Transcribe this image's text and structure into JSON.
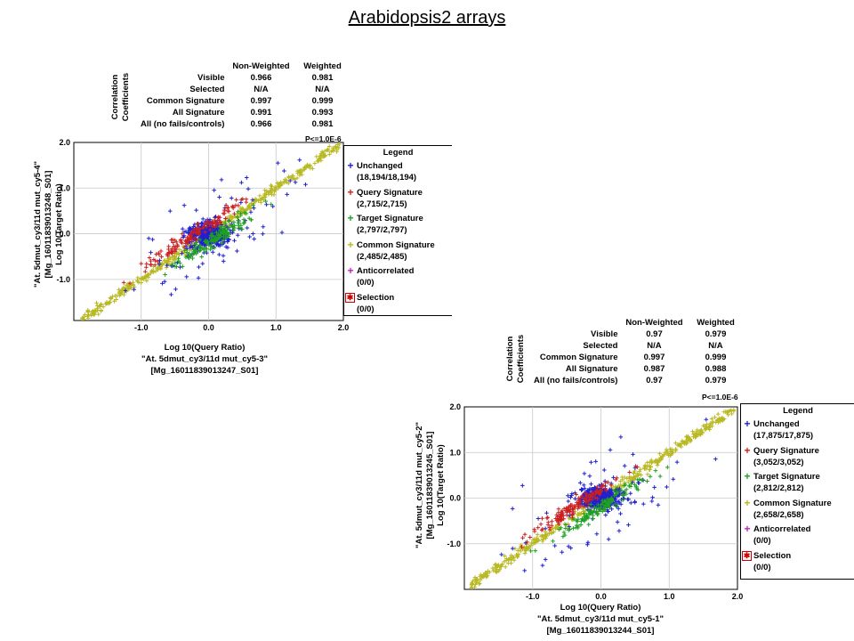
{
  "page": {
    "title": "Arabidopsis2 arrays"
  },
  "colors": {
    "unchanged": "#2020d0",
    "query": "#cc2020",
    "target": "#20a020",
    "common": "#b8b820",
    "anticorrelated": "#c020c0",
    "selection": "#cc0000"
  },
  "panels": [
    {
      "table": {
        "side_label_1": "Correlation",
        "side_label_2": "Coefficients",
        "headers": [
          "Non-Weighted",
          "Weighted"
        ],
        "rows": [
          {
            "name": "Visible",
            "nw": "0.966",
            "w": "0.981"
          },
          {
            "name": "Selected",
            "nw": "N/A",
            "w": "N/A"
          },
          {
            "name": "Common Signature",
            "nw": "0.997",
            "w": "0.999"
          },
          {
            "name": "All Signature",
            "nw": "0.991",
            "w": "0.993"
          },
          {
            "name": "All (no fails/controls)",
            "nw": "0.966",
            "w": "0.981"
          }
        ],
        "pvalue": "P<=1.0E-6"
      },
      "xlabel": [
        "Log 10(Query Ratio)",
        "\"At. 5dmut_cy3/11d mut_cy5-3\"",
        "[Mg_16011839013247_S01]"
      ],
      "ylabel": [
        "\"At. 5dmut_cy3/11d mut_cy5-4\"",
        "[Mg_16011839013248_S01]",
        "Log 10(Target Ratio)"
      ],
      "legend": {
        "title": "Legend",
        "items": [
          {
            "name": "Unchanged",
            "count": "(18,194/18,194)"
          },
          {
            "name": "Query Signature",
            "count": "(2,715/2,715)"
          },
          {
            "name": "Target Signature",
            "count": "(2,797/2,797)"
          },
          {
            "name": "Common Signature",
            "count": "(2,485/2,485)"
          },
          {
            "name": "Anticorrelated",
            "count": "(0/0)"
          },
          {
            "name": "Selection",
            "count": "(0/0)"
          }
        ]
      }
    },
    {
      "table": {
        "side_label_1": "Correlation",
        "side_label_2": "Coefficients",
        "headers": [
          "Non-Weighted",
          "Weighted"
        ],
        "rows": [
          {
            "name": "Visible",
            "nw": "0.97",
            "w": "0.979"
          },
          {
            "name": "Selected",
            "nw": "N/A",
            "w": "N/A"
          },
          {
            "name": "Common Signature",
            "nw": "0.997",
            "w": "0.999"
          },
          {
            "name": "All Signature",
            "nw": "0.987",
            "w": "0.988"
          },
          {
            "name": "All (no fails/controls)",
            "nw": "0.97",
            "w": "0.979"
          }
        ],
        "pvalue": "P<=1.0E-6"
      },
      "xlabel": [
        "Log 10(Query Ratio)",
        "\"At. 5dmut_cy3/11d mut_cy5-1\"",
        "[Mg_16011839013244_S01]"
      ],
      "ylabel": [
        "\"At. 5dmut_cy3/11d mut_cy5-2\"",
        "[Mg_16011839013245_S01]",
        "Log 10(Target Ratio)"
      ],
      "legend": {
        "title": "Legend",
        "items": [
          {
            "name": "Unchanged",
            "count": "(17,875/17,875)"
          },
          {
            "name": "Query Signature",
            "count": "(3,052/3,052)"
          },
          {
            "name": "Target Signature",
            "count": "(2,812/2,812)"
          },
          {
            "name": "Common Signature",
            "count": "(2,658/2,658)"
          },
          {
            "name": "Anticorrelated",
            "count": "(0/0)"
          },
          {
            "name": "Selection",
            "count": "(0/0)"
          }
        ]
      }
    }
  ],
  "chart_data": [
    {
      "type": "scatter",
      "xlabel": "Log 10(Query Ratio)",
      "ylabel": "Log 10(Target Ratio)",
      "xlim": [
        -2.0,
        2.0
      ],
      "ylim": [
        -1.9,
        2.0
      ],
      "x_ticks": [
        "-1.0",
        "0.0",
        "1.0",
        "2.0"
      ],
      "y_ticks": [
        "2.0",
        "1.0",
        "0.0",
        "-1.0"
      ],
      "grid": true,
      "legend_position": "right",
      "series": [
        {
          "name": "Unchanged",
          "count": 18194,
          "center": [
            0.0,
            0.0
          ],
          "spread": 0.25
        },
        {
          "name": "Query Signature",
          "count": 2715,
          "center": [
            -0.2,
            0.0
          ],
          "spread": 0.15
        },
        {
          "name": "Target Signature",
          "count": 2797,
          "center": [
            0.1,
            -0.1
          ],
          "spread": 0.15
        },
        {
          "name": "Common Signature",
          "count": 2485,
          "slope": 1.0,
          "x_range": [
            -1.9,
            1.95
          ]
        },
        {
          "name": "Anticorrelated",
          "count": 0
        },
        {
          "name": "Selection",
          "count": 0
        }
      ]
    },
    {
      "type": "scatter",
      "xlabel": "Log 10(Query Ratio)",
      "ylabel": "Log 10(Target Ratio)",
      "xlim": [
        -2.0,
        2.0
      ],
      "ylim": [
        -2.0,
        2.0
      ],
      "x_ticks": [
        "-1.0",
        "0.0",
        "1.0",
        "2.0"
      ],
      "y_ticks": [
        "2.0",
        "1.0",
        "0.0",
        "-1.0"
      ],
      "grid": true,
      "legend_position": "right",
      "series": [
        {
          "name": "Unchanged",
          "count": 17875,
          "center": [
            0.0,
            0.0
          ],
          "spread": 0.25
        },
        {
          "name": "Query Signature",
          "count": 3052,
          "center": [
            -0.35,
            -0.15
          ],
          "spread": 0.15
        },
        {
          "name": "Target Signature",
          "count": 2812,
          "center": [
            0.0,
            -0.2
          ],
          "spread": 0.15
        },
        {
          "name": "Common Signature",
          "count": 2658,
          "slope": 1.0,
          "x_range": [
            -1.9,
            1.95
          ]
        },
        {
          "name": "Anticorrelated",
          "count": 0
        },
        {
          "name": "Selection",
          "count": 0
        }
      ]
    }
  ]
}
